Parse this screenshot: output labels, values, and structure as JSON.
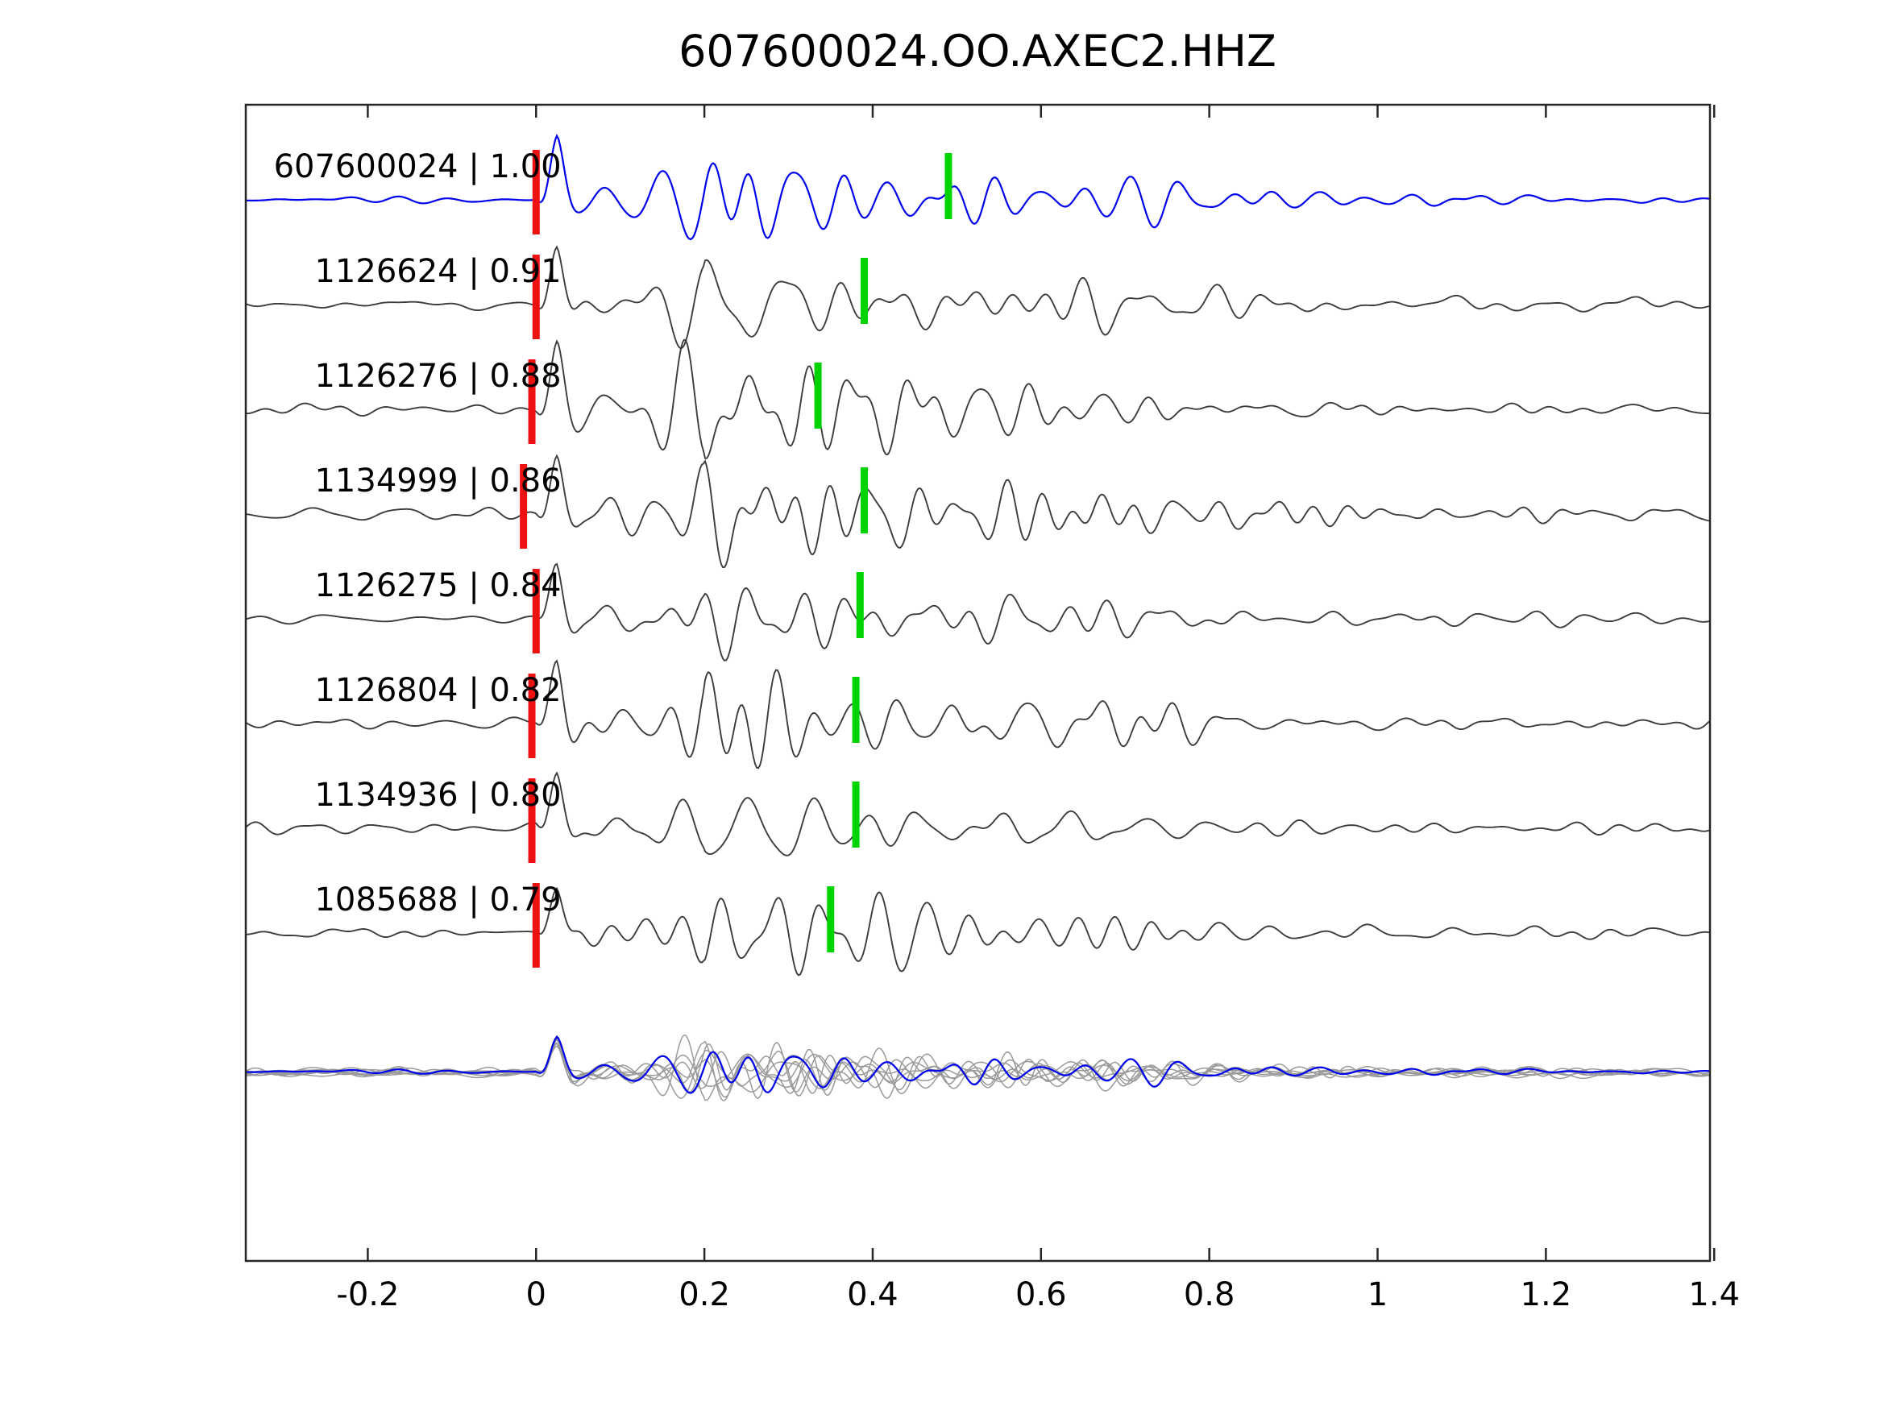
{
  "title": "607600024.OO.AXEC2.HHZ",
  "chart_data": {
    "type": "line",
    "title": "607600024.OO.AXEC2.HHZ",
    "subtitle": "",
    "xlabel": "",
    "ylabel": "",
    "xlim": [
      -0.345,
      1.395
    ],
    "xticks": [
      -0.2,
      0,
      0.2,
      0.4,
      0.6,
      0.8,
      1.0,
      1.2,
      1.4
    ],
    "xtick_labels": [
      "-0.2",
      "0",
      "0.2",
      "0.4",
      "0.6",
      "0.8",
      "1",
      "1.2",
      "1.4"
    ],
    "grid": false,
    "legend": "none",
    "description": "Template waveform cross-correlation plot: reference trace (blue) on top, 7 matched event traces (dark gray) below with correlation coefficients, red ticks mark alignment pick at t=0, green ticks mark secondary picks; bottom row overlays all traces (gray) with reference (blue).",
    "colors": {
      "reference_trace": "#0000ee",
      "match_trace": "#3c3c3c",
      "overlay_gray": "#9a9a9a",
      "pick_red": "#ee1111",
      "pick_green": "#00d400",
      "axis": "#262626"
    },
    "traces": [
      {
        "id": "607600024",
        "label": "607600024 | 1.00",
        "correlation": 1.0,
        "role": "reference",
        "red_pick_x": 0.0,
        "green_pick_x": 0.49,
        "seed": 11
      },
      {
        "id": "1126624",
        "label": "1126624 | 0.91",
        "correlation": 0.91,
        "role": "match",
        "red_pick_x": 0.0,
        "green_pick_x": 0.39,
        "seed": 22
      },
      {
        "id": "1126276",
        "label": "1126276 | 0.88",
        "correlation": 0.88,
        "role": "match",
        "red_pick_x": -0.005,
        "green_pick_x": 0.335,
        "seed": 33
      },
      {
        "id": "1134999",
        "label": "1134999 | 0.86",
        "correlation": 0.86,
        "role": "match",
        "red_pick_x": -0.015,
        "green_pick_x": 0.39,
        "seed": 44
      },
      {
        "id": "1126275",
        "label": "1126275 | 0.84",
        "correlation": 0.84,
        "role": "match",
        "red_pick_x": 0.0,
        "green_pick_x": 0.385,
        "seed": 55
      },
      {
        "id": "1126804",
        "label": "1126804 | 0.82",
        "correlation": 0.82,
        "role": "match",
        "red_pick_x": -0.005,
        "green_pick_x": 0.38,
        "seed": 66
      },
      {
        "id": "1134936",
        "label": "1134936 | 0.80",
        "correlation": 0.8,
        "role": "match",
        "red_pick_x": -0.005,
        "green_pick_x": 0.38,
        "seed": 77
      },
      {
        "id": "1085688",
        "label": "1085688 | 0.79",
        "correlation": 0.79,
        "role": "match",
        "red_pick_x": 0.0,
        "green_pick_x": 0.35,
        "seed": 88
      }
    ],
    "overlay_row": {
      "description": "all event traces overlaid in gray with reference trace in blue",
      "gray_color": "#9a9a9a",
      "highlight_color": "#0000ee"
    }
  }
}
